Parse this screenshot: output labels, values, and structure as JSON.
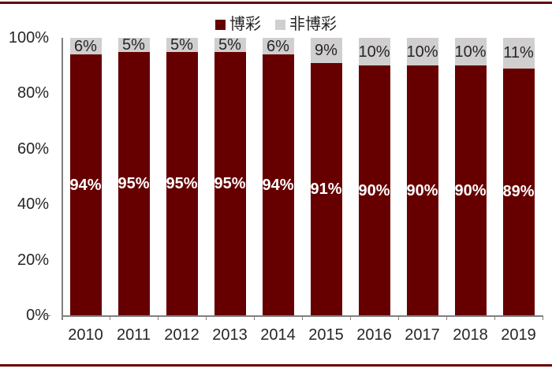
{
  "colors": {
    "accent_rule": "#660000",
    "axis": "#808080",
    "text": "#262626"
  },
  "chart_data": {
    "type": "bar",
    "stacked": true,
    "title": "",
    "xlabel": "",
    "ylabel": "",
    "categories": [
      "2010",
      "2011",
      "2012",
      "2013",
      "2014",
      "2015",
      "2016",
      "2017",
      "2018",
      "2019"
    ],
    "series": [
      {
        "name": "博彩",
        "color": "#660000",
        "label_color": "#FFFFFF",
        "label_bold": true,
        "values": [
          94,
          95,
          95,
          95,
          94,
          91,
          90,
          90,
          90,
          89
        ]
      },
      {
        "name": "非博彩",
        "color": "#D0CECE",
        "label_color": "#262626",
        "label_bold": false,
        "values": [
          6,
          5,
          5,
          5,
          6,
          9,
          10,
          10,
          10,
          11
        ]
      }
    ],
    "value_label_suffix": "%",
    "ylim": [
      0,
      100
    ],
    "yticks": [
      {
        "label": "0%",
        "value": 0
      },
      {
        "label": "20%",
        "value": 20
      },
      {
        "label": "40%",
        "value": 40
      },
      {
        "label": "60%",
        "value": 60
      },
      {
        "label": "80%",
        "value": 80
      },
      {
        "label": "100%",
        "value": 100
      }
    ],
    "grid": false,
    "legend_position": "top-center"
  }
}
